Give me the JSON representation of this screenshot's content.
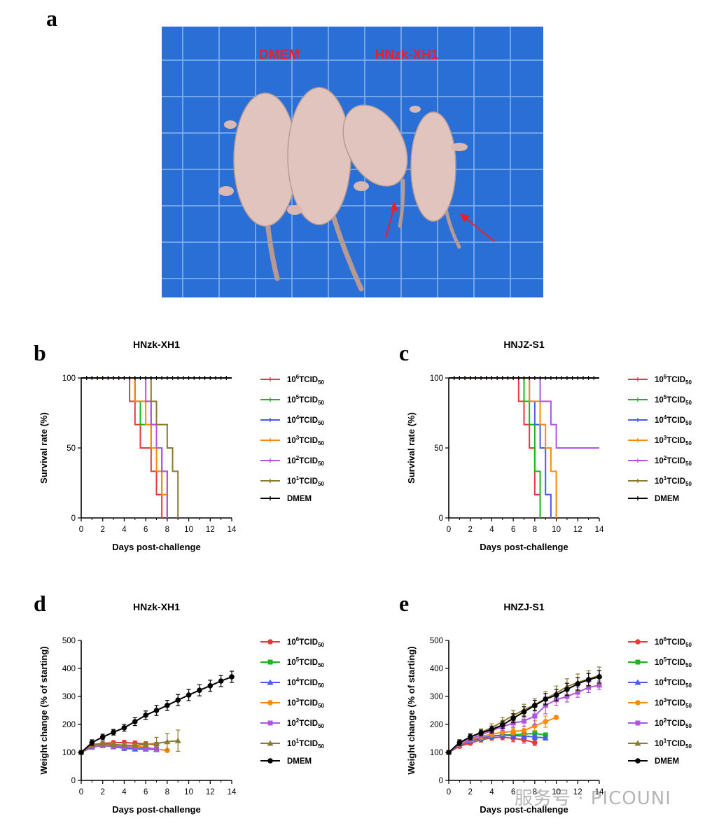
{
  "panels": {
    "a": "a",
    "b": "b",
    "c": "c",
    "d": "d",
    "e": "e"
  },
  "photo": {
    "label_left": "DMEM",
    "label_right": "HNzk-XH1",
    "label_color": "#e8202a",
    "background_color": "#2a6fd6"
  },
  "watermark": "服务号 · PICOUNI",
  "colors": {
    "c1e6": "#e8393a",
    "c1e5": "#19b81a",
    "c1e4": "#4a5de8",
    "c1e3": "#ff8a0a",
    "c1e2": "#b055e0",
    "c1e1": "#8b7b2e",
    "dmem": "#000000"
  },
  "legend": {
    "prefix": "10",
    "unit_main": "TCID",
    "unit_sub": "50",
    "dmem": "DMEM",
    "items": [
      {
        "exp": "6",
        "color_key": "c1e6"
      },
      {
        "exp": "5",
        "color_key": "c1e5"
      },
      {
        "exp": "4",
        "color_key": "c1e4"
      },
      {
        "exp": "3",
        "color_key": "c1e3"
      },
      {
        "exp": "2",
        "color_key": "c1e2"
      },
      {
        "exp": "1",
        "color_key": "c1e1"
      }
    ]
  },
  "chart_data": [
    {
      "id": "b",
      "type": "line",
      "subtype": "survival",
      "title": "HNzk-XH1",
      "xlabel": "Days post-challenge",
      "ylabel": "Survival rate (%)",
      "xlim": [
        0,
        14
      ],
      "ylim": [
        0,
        100
      ],
      "xticks": [
        "0",
        "2",
        "4",
        "6",
        "8",
        "10",
        "12",
        "14"
      ],
      "yticks": [
        "0",
        "50",
        "100"
      ],
      "series": [
        {
          "name": "10^6 TCID50",
          "color_key": "c1e6",
          "steps": [
            [
              0,
              100
            ],
            [
              4.5,
              83.3
            ],
            [
              5,
              66.7
            ],
            [
              5.5,
              50
            ],
            [
              6.5,
              33.3
            ],
            [
              7,
              16.7
            ],
            [
              7.5,
              0
            ]
          ]
        },
        {
          "name": "10^5 TCID50",
          "color_key": "c1e5",
          "steps": [
            [
              0,
              100
            ],
            [
              5,
              83.3
            ],
            [
              5.5,
              66.7
            ],
            [
              6.5,
              50
            ],
            [
              7,
              33.3
            ],
            [
              7.5,
              16.7
            ],
            [
              8,
              0
            ]
          ]
        },
        {
          "name": "10^4 TCID50",
          "color_key": "c1e4",
          "steps": [
            [
              0,
              100
            ],
            [
              5,
              83.3
            ],
            [
              6.5,
              66.7
            ],
            [
              7,
              50
            ],
            [
              7.5,
              33.3
            ],
            [
              8,
              0
            ]
          ]
        },
        {
          "name": "10^3 TCID50",
          "color_key": "c1e3",
          "steps": [
            [
              0,
              100
            ],
            [
              5,
              83.3
            ],
            [
              6,
              66.7
            ],
            [
              6.5,
              50
            ],
            [
              7,
              33.3
            ],
            [
              7.5,
              16.7
            ],
            [
              8,
              0
            ]
          ]
        },
        {
          "name": "10^2 TCID50",
          "color_key": "c1e2",
          "steps": [
            [
              0,
              100
            ],
            [
              6,
              83.3
            ],
            [
              6.5,
              66.7
            ],
            [
              7,
              50
            ],
            [
              7.5,
              33.3
            ],
            [
              8,
              0
            ]
          ]
        },
        {
          "name": "10^1 TCID50",
          "color_key": "c1e1",
          "steps": [
            [
              0,
              100
            ],
            [
              6.5,
              83.3
            ],
            [
              7,
              66.7
            ],
            [
              8,
              50
            ],
            [
              8.5,
              33.3
            ],
            [
              9,
              0
            ]
          ]
        },
        {
          "name": "DMEM",
          "color_key": "dmem",
          "steps": [
            [
              0,
              100
            ],
            [
              14,
              100
            ]
          ]
        }
      ]
    },
    {
      "id": "c",
      "type": "line",
      "subtype": "survival",
      "title": "HNJZ-S1",
      "xlabel": "Days post-challenge",
      "ylabel": "Survival rate (%)",
      "xlim": [
        0,
        14
      ],
      "ylim": [
        0,
        100
      ],
      "xticks": [
        "0",
        "2",
        "4",
        "6",
        "8",
        "10",
        "12",
        "14"
      ],
      "yticks": [
        "0",
        "50",
        "100"
      ],
      "series": [
        {
          "name": "10^6 TCID50",
          "color_key": "c1e6",
          "steps": [
            [
              0,
              100
            ],
            [
              6.5,
              83.3
            ],
            [
              7,
              66.7
            ],
            [
              7.5,
              50
            ],
            [
              8,
              16.7
            ],
            [
              8.5,
              0
            ]
          ]
        },
        {
          "name": "10^5 TCID50",
          "color_key": "c1e5",
          "steps": [
            [
              0,
              100
            ],
            [
              7,
              83.3
            ],
            [
              7.5,
              66.7
            ],
            [
              8,
              33.3
            ],
            [
              8.5,
              0
            ]
          ]
        },
        {
          "name": "10^4 TCID50",
          "color_key": "c1e4",
          "steps": [
            [
              0,
              100
            ],
            [
              7.5,
              83.3
            ],
            [
              8,
              66.7
            ],
            [
              8.5,
              50
            ],
            [
              9,
              16.7
            ],
            [
              9.5,
              0
            ]
          ]
        },
        {
          "name": "10^3 TCID50",
          "color_key": "c1e3",
          "steps": [
            [
              0,
              100
            ],
            [
              7.5,
              83.3
            ],
            [
              8.5,
              66.7
            ],
            [
              9,
              50
            ],
            [
              9.5,
              33.3
            ],
            [
              10,
              0
            ]
          ]
        },
        {
          "name": "10^2 TCID50",
          "color_key": "c1e2",
          "steps": [
            [
              0,
              100
            ],
            [
              8.5,
              83.3
            ],
            [
              9.5,
              66.7
            ],
            [
              10,
              50
            ],
            [
              14,
              50
            ]
          ]
        },
        {
          "name": "10^1 TCID50",
          "color_key": "c1e1",
          "steps": [
            [
              0,
              100
            ],
            [
              14,
              100
            ]
          ]
        },
        {
          "name": "DMEM",
          "color_key": "dmem",
          "steps": [
            [
              0,
              100
            ],
            [
              14,
              100
            ]
          ]
        }
      ]
    },
    {
      "id": "d",
      "type": "line",
      "subtype": "weight",
      "title": "HNzk-XH1",
      "xlabel": "Days post-challenge",
      "ylabel": "Weight change (% of starting)",
      "xlim": [
        0,
        14
      ],
      "ylim": [
        0,
        500
      ],
      "xticks": [
        "0",
        "2",
        "4",
        "6",
        "8",
        "10",
        "12",
        "14"
      ],
      "yticks": [
        "0",
        "100",
        "200",
        "300",
        "400",
        "500"
      ],
      "series": [
        {
          "name": "10^6 TCID50",
          "color_key": "c1e6",
          "marker": "circle",
          "x": [
            0,
            1,
            2,
            3,
            4,
            5,
            6,
            7
          ],
          "y": [
            100,
            128,
            132,
            135,
            135,
            133,
            130,
            128
          ],
          "err": [
            0,
            6,
            6,
            6,
            8,
            8,
            8,
            8
          ]
        },
        {
          "name": "10^5 TCID50",
          "color_key": "c1e5",
          "marker": "square",
          "x": [
            0,
            1,
            2,
            3,
            4,
            5,
            6,
            7
          ],
          "y": [
            100,
            118,
            125,
            127,
            125,
            120,
            115,
            112
          ],
          "err": [
            0,
            5,
            5,
            6,
            6,
            6,
            6,
            6
          ]
        },
        {
          "name": "10^4 TCID50",
          "color_key": "c1e4",
          "marker": "triangle",
          "x": [
            0,
            1,
            2,
            3,
            4,
            5,
            6,
            7
          ],
          "y": [
            100,
            120,
            125,
            120,
            115,
            112,
            112,
            110
          ],
          "err": [
            0,
            5,
            6,
            6,
            8,
            6,
            6,
            6
          ]
        },
        {
          "name": "10^3 TCID50",
          "color_key": "c1e3",
          "marker": "circle",
          "x": [
            0,
            1,
            2,
            3,
            4,
            5,
            6,
            7,
            8
          ],
          "y": [
            100,
            122,
            127,
            128,
            125,
            122,
            118,
            112,
            107
          ],
          "err": [
            0,
            6,
            6,
            6,
            6,
            6,
            6,
            6,
            0
          ]
        },
        {
          "name": "10^2 TCID50",
          "color_key": "c1e2",
          "marker": "square",
          "x": [
            0,
            1,
            2,
            3,
            4,
            5,
            6,
            7
          ],
          "y": [
            100,
            120,
            124,
            122,
            120,
            118,
            115,
            112
          ],
          "err": [
            0,
            5,
            5,
            5,
            5,
            5,
            5,
            5
          ]
        },
        {
          "name": "10^1 TCID50",
          "color_key": "c1e1",
          "marker": "triangle",
          "x": [
            0,
            1,
            2,
            3,
            4,
            5,
            6,
            7,
            8,
            9
          ],
          "y": [
            100,
            125,
            130,
            128,
            126,
            125,
            128,
            132,
            138,
            142
          ],
          "err": [
            0,
            6,
            6,
            6,
            8,
            8,
            10,
            22,
            30,
            38
          ]
        },
        {
          "name": "DMEM",
          "color_key": "dmem",
          "marker": "circle",
          "x": [
            0,
            1,
            2,
            3,
            4,
            5,
            6,
            7,
            8,
            9,
            10,
            11,
            12,
            13,
            14
          ],
          "y": [
            100,
            135,
            155,
            172,
            188,
            210,
            233,
            250,
            268,
            287,
            305,
            322,
            338,
            355,
            370
          ],
          "err": [
            0,
            10,
            10,
            10,
            12,
            14,
            15,
            18,
            18,
            20,
            20,
            20,
            20,
            20,
            20
          ]
        }
      ]
    },
    {
      "id": "e",
      "type": "line",
      "subtype": "weight",
      "title": "HNZJ-S1",
      "xlabel": "Days post-challenge",
      "ylabel": "Weight change (% of starting)",
      "xlim": [
        0,
        14
      ],
      "ylim": [
        0,
        500
      ],
      "xticks": [
        "0",
        "2",
        "4",
        "6",
        "8",
        "10",
        "12",
        "14"
      ],
      "yticks": [
        "0",
        "100",
        "200",
        "300",
        "400",
        "500"
      ],
      "series": [
        {
          "name": "10^6 TCID50",
          "color_key": "c1e6",
          "marker": "circle",
          "x": [
            0,
            1,
            2,
            3,
            4,
            5,
            6,
            7,
            8
          ],
          "y": [
            100,
            122,
            133,
            145,
            152,
            155,
            150,
            145,
            135
          ],
          "err": [
            0,
            6,
            6,
            8,
            8,
            10,
            12,
            12,
            10
          ]
        },
        {
          "name": "10^5 TCID50",
          "color_key": "c1e5",
          "marker": "square",
          "x": [
            0,
            1,
            2,
            3,
            4,
            5,
            6,
            7,
            8,
            9
          ],
          "y": [
            100,
            125,
            140,
            150,
            158,
            162,
            163,
            165,
            168,
            162
          ],
          "err": [
            0,
            6,
            8,
            8,
            10,
            10,
            10,
            10,
            10,
            8
          ]
        },
        {
          "name": "10^4 TCID50",
          "color_key": "c1e4",
          "marker": "triangle",
          "x": [
            0,
            1,
            2,
            3,
            4,
            5,
            6,
            7,
            8,
            9
          ],
          "y": [
            100,
            125,
            140,
            152,
            158,
            162,
            160,
            158,
            155,
            152
          ],
          "err": [
            0,
            6,
            8,
            8,
            10,
            10,
            10,
            10,
            10,
            8
          ]
        },
        {
          "name": "10^3 TCID50",
          "color_key": "c1e3",
          "marker": "circle",
          "x": [
            0,
            1,
            2,
            3,
            4,
            5,
            6,
            7,
            8,
            9,
            10
          ],
          "y": [
            100,
            128,
            145,
            157,
            165,
            172,
            175,
            178,
            195,
            210,
            225
          ],
          "err": [
            0,
            8,
            8,
            10,
            10,
            12,
            12,
            15,
            18,
            20,
            0
          ]
        },
        {
          "name": "10^2 TCID50",
          "color_key": "c1e2",
          "marker": "square",
          "x": [
            0,
            1,
            2,
            3,
            4,
            5,
            6,
            7,
            8,
            9,
            10,
            11,
            12,
            13,
            14
          ],
          "y": [
            100,
            128,
            148,
            163,
            178,
            192,
            205,
            212,
            230,
            268,
            288,
            300,
            315,
            332,
            340
          ],
          "err": [
            0,
            8,
            10,
            10,
            12,
            14,
            15,
            18,
            30,
            30,
            20,
            20,
            18,
            18,
            15
          ]
        },
        {
          "name": "10^1 TCID50",
          "color_key": "c1e1",
          "marker": "triangle",
          "x": [
            0,
            1,
            2,
            3,
            4,
            5,
            6,
            7,
            8,
            9,
            10,
            11,
            12,
            13,
            14
          ],
          "y": [
            100,
            132,
            155,
            172,
            188,
            210,
            232,
            252,
            270,
            292,
            312,
            335,
            350,
            362,
            375
          ],
          "err": [
            0,
            10,
            12,
            12,
            14,
            15,
            18,
            20,
            22,
            25,
            25,
            28,
            30,
            30,
            30
          ]
        },
        {
          "name": "DMEM",
          "color_key": "dmem",
          "marker": "circle",
          "x": [
            0,
            1,
            2,
            3,
            4,
            5,
            6,
            7,
            8,
            9,
            10,
            11,
            12,
            13,
            14
          ],
          "y": [
            100,
            135,
            155,
            170,
            182,
            198,
            222,
            245,
            268,
            290,
            305,
            325,
            345,
            360,
            370
          ],
          "err": [
            0,
            10,
            10,
            10,
            12,
            14,
            16,
            18,
            18,
            20,
            20,
            22,
            22,
            22,
            22
          ]
        }
      ]
    }
  ]
}
